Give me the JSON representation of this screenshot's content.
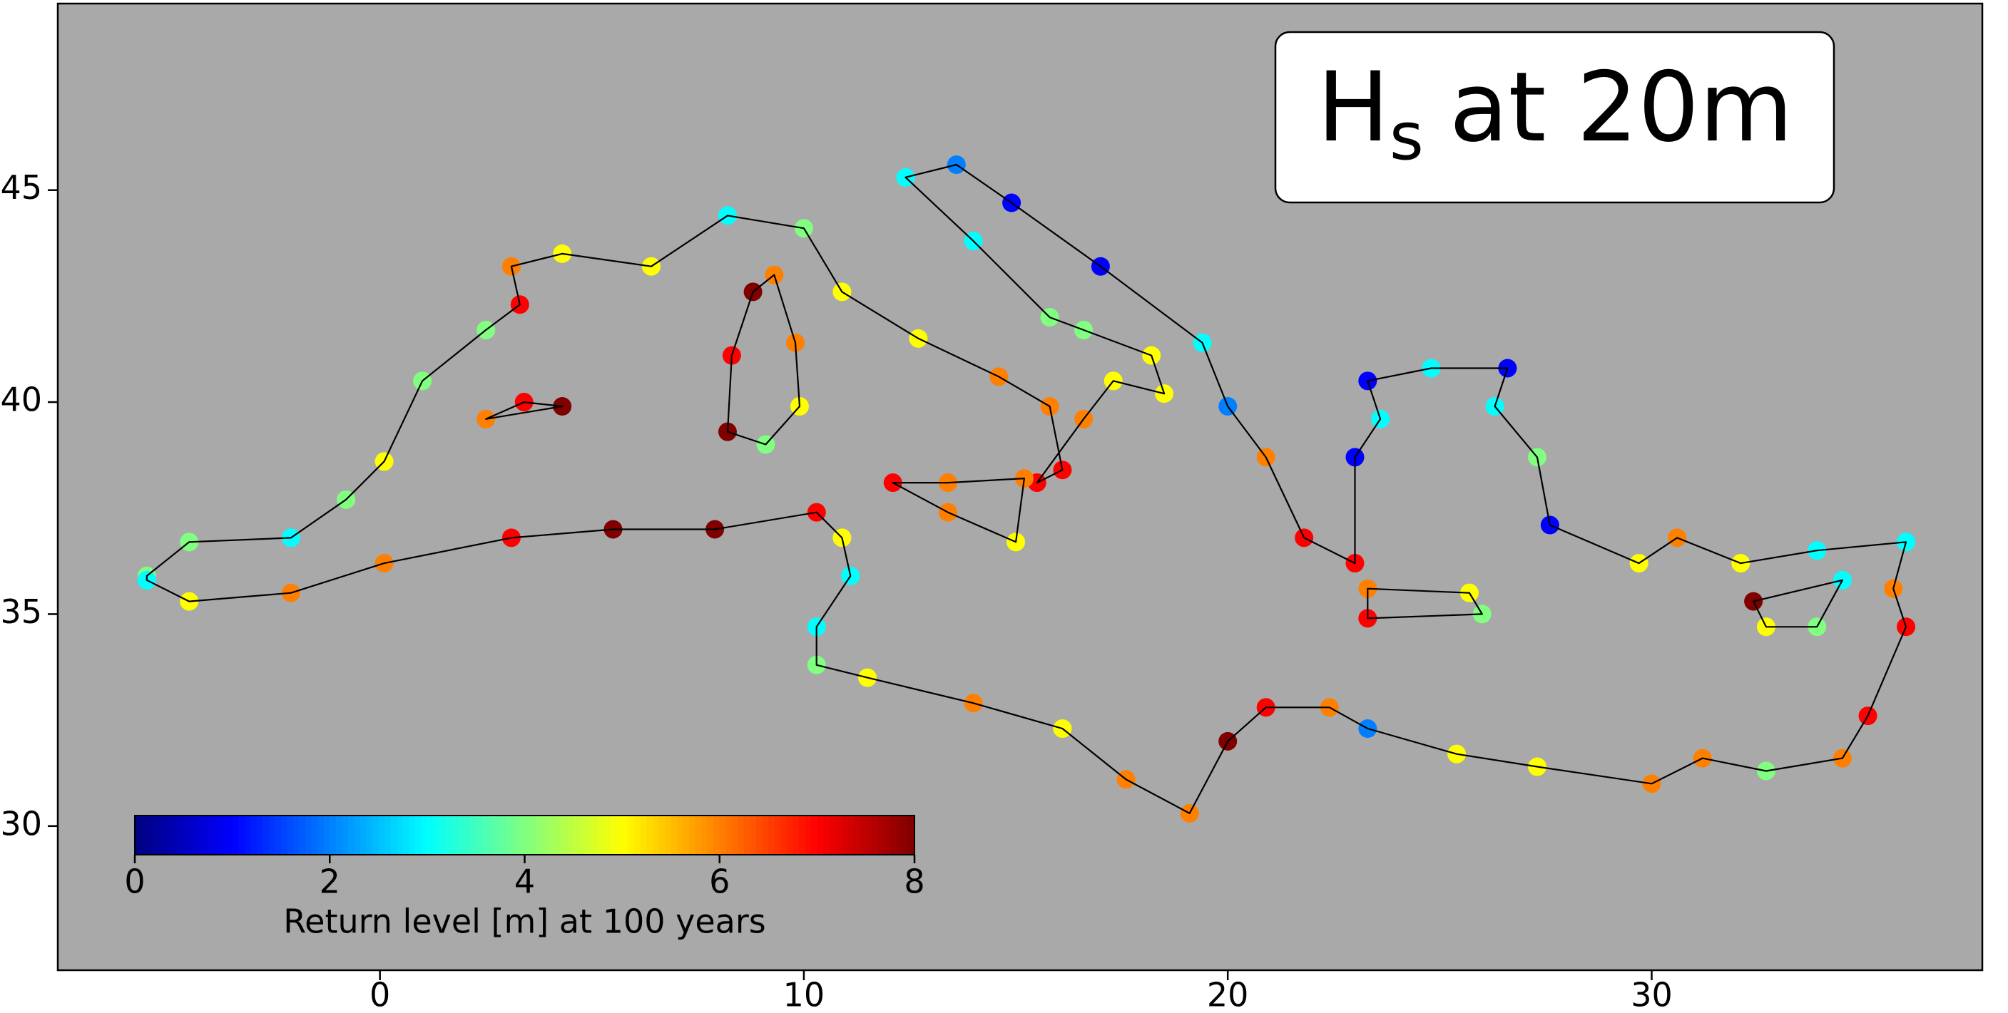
{
  "chart_data": {
    "type": "map",
    "title_symbol": "H",
    "title_subscript": "s",
    "title_rest": "at 20m",
    "xlim": [
      -7.6,
      37.8
    ],
    "ylim": [
      26.6,
      49.4
    ],
    "xticks": [
      0,
      10,
      20,
      30
    ],
    "yticks": [
      30,
      35,
      40,
      45
    ],
    "background": "#a9a9a9",
    "colormap": "jet",
    "clim": [
      0,
      8
    ],
    "colorbar_ticks": [
      0,
      2,
      4,
      6,
      8
    ],
    "colorbar_label": "Return level [m] at 100 years",
    "segments": [
      {
        "closed": true,
        "lon": [
          -5.5,
          -4.5,
          -2.1,
          -0.8,
          0.1,
          1.0,
          2.5,
          3.3,
          3.1,
          4.3,
          6.4,
          8.2,
          10.0,
          10.9,
          12.7,
          14.6,
          15.8,
          16.1,
          15.5,
          16.6,
          17.3,
          18.5,
          18.2,
          16.6,
          15.8,
          14.0,
          12.4,
          13.6,
          14.9,
          17.0,
          19.4,
          20.0,
          20.9,
          21.8,
          23.0,
          23.0,
          23.6,
          23.3,
          24.8,
          26.6,
          26.3,
          27.3,
          27.6,
          29.7,
          30.6,
          32.1,
          33.9,
          36.0,
          35.7,
          36.0,
          35.1,
          34.5,
          32.7,
          31.2,
          30.0,
          27.3,
          25.4,
          23.3,
          22.4,
          20.9,
          20.0,
          19.1,
          17.6,
          16.1,
          14.0,
          11.5,
          10.3,
          10.3,
          11.1,
          10.9,
          10.3,
          7.9,
          5.5,
          3.1,
          0.1,
          -2.1,
          -4.5,
          -5.5
        ],
        "lat": [
          35.9,
          36.7,
          36.8,
          37.7,
          38.6,
          40.5,
          41.7,
          42.3,
          43.2,
          43.5,
          43.2,
          44.4,
          44.1,
          42.6,
          41.5,
          40.6,
          39.9,
          38.4,
          38.1,
          39.6,
          40.5,
          40.2,
          41.1,
          41.7,
          42.0,
          43.8,
          45.3,
          45.6,
          44.7,
          43.2,
          41.4,
          39.9,
          38.7,
          36.8,
          36.2,
          38.7,
          39.6,
          40.5,
          40.8,
          40.8,
          39.9,
          38.7,
          37.1,
          36.2,
          36.8,
          36.2,
          36.5,
          36.7,
          35.6,
          34.7,
          32.6,
          31.6,
          31.3,
          31.6,
          31.0,
          31.4,
          31.7,
          32.3,
          32.8,
          32.8,
          32.0,
          30.3,
          31.1,
          32.3,
          32.9,
          33.5,
          33.8,
          34.7,
          35.9,
          36.8,
          37.4,
          37.0,
          37.0,
          36.8,
          36.2,
          35.5,
          35.3,
          35.8
        ],
        "values": [
          4,
          4,
          3,
          4,
          5,
          4,
          4,
          7,
          6,
          5,
          5,
          3,
          4,
          5,
          5,
          6,
          6,
          7,
          7,
          6,
          5,
          5,
          5,
          4,
          4,
          3,
          3,
          2,
          1,
          1,
          3,
          2,
          6,
          7,
          7,
          1,
          3,
          1,
          3,
          1,
          3,
          4,
          1,
          5,
          6,
          5,
          3,
          3,
          6,
          7,
          7,
          6,
          4,
          6,
          6,
          5,
          5,
          2,
          6,
          7,
          8,
          6,
          6,
          5,
          6,
          5,
          4,
          3,
          3,
          5,
          7,
          8,
          8,
          7,
          6,
          6,
          5,
          3
        ]
      },
      {
        "closed": true,
        "lon": [
          9.3,
          9.8,
          9.9,
          9.1,
          8.2,
          8.3,
          8.8
        ],
        "lat": [
          43.0,
          41.4,
          39.9,
          39.0,
          39.3,
          41.1,
          42.6
        ],
        "values": [
          6,
          6,
          5,
          4,
          8,
          7,
          8
        ]
      },
      {
        "closed": true,
        "lon": [
          12.1,
          13.4,
          15.2,
          15.0,
          13.4
        ],
        "lat": [
          38.1,
          38.1,
          38.2,
          36.7,
          37.4
        ],
        "values": [
          7,
          6,
          6,
          5,
          6
        ]
      },
      {
        "closed": true,
        "lon": [
          23.3,
          25.7,
          26.0,
          23.3
        ],
        "lat": [
          35.6,
          35.5,
          35.0,
          34.9
        ],
        "values": [
          6,
          5,
          4,
          7
        ]
      },
      {
        "closed": true,
        "lon": [
          32.4,
          34.5,
          33.9,
          32.7
        ],
        "lat": [
          35.3,
          35.8,
          34.7,
          34.7
        ],
        "values": [
          8,
          3,
          4,
          5
        ]
      },
      {
        "closed": true,
        "lon": [
          2.5,
          3.4,
          4.3
        ],
        "lat": [
          39.6,
          40.0,
          39.9
        ],
        "values": [
          6,
          7,
          8
        ]
      }
    ]
  }
}
